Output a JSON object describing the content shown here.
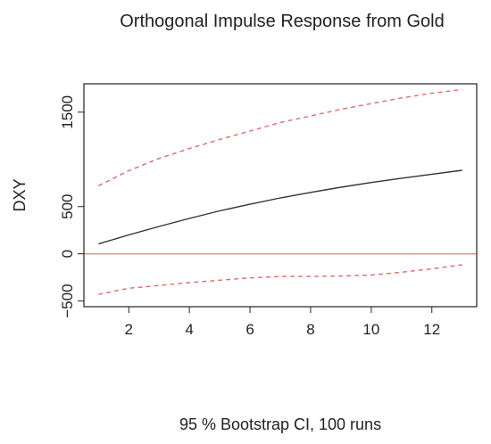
{
  "chart_data": {
    "type": "line",
    "title": "Orthogonal Impulse Response from Gold",
    "xlabel": "95 % Bootstrap CI,  100 runs",
    "ylabel": "DXY",
    "xlim": [
      0.52,
      13.48
    ],
    "ylim": [
      -560,
      1800
    ],
    "x_ticks": [
      "2",
      "4",
      "6",
      "8",
      "10",
      "12"
    ],
    "y_ticks": [
      "-500",
      "0",
      "500",
      "1500"
    ],
    "x": [
      1,
      2,
      3,
      4,
      5,
      6,
      7,
      8,
      9,
      10,
      11,
      12,
      13
    ],
    "series": [
      {
        "color": "#333333",
        "style": "solid",
        "values": [
          105,
          200,
          290,
          375,
          455,
          525,
          592,
          650,
          705,
          755,
          800,
          843,
          884
        ]
      },
      {
        "color": "#e06c6c",
        "style": "dashed",
        "values": [
          720,
          880,
          1010,
          1115,
          1210,
          1300,
          1390,
          1460,
          1530,
          1590,
          1650,
          1700,
          1740
        ]
      },
      {
        "color": "#e06c6c",
        "style": "dashed",
        "values": [
          -430,
          -365,
          -335,
          -305,
          -280,
          -255,
          -240,
          -240,
          -235,
          -225,
          -195,
          -160,
          -115
        ]
      }
    ],
    "reference_line": {
      "y": 0,
      "color": "#e88a8a"
    },
    "grid": false
  }
}
